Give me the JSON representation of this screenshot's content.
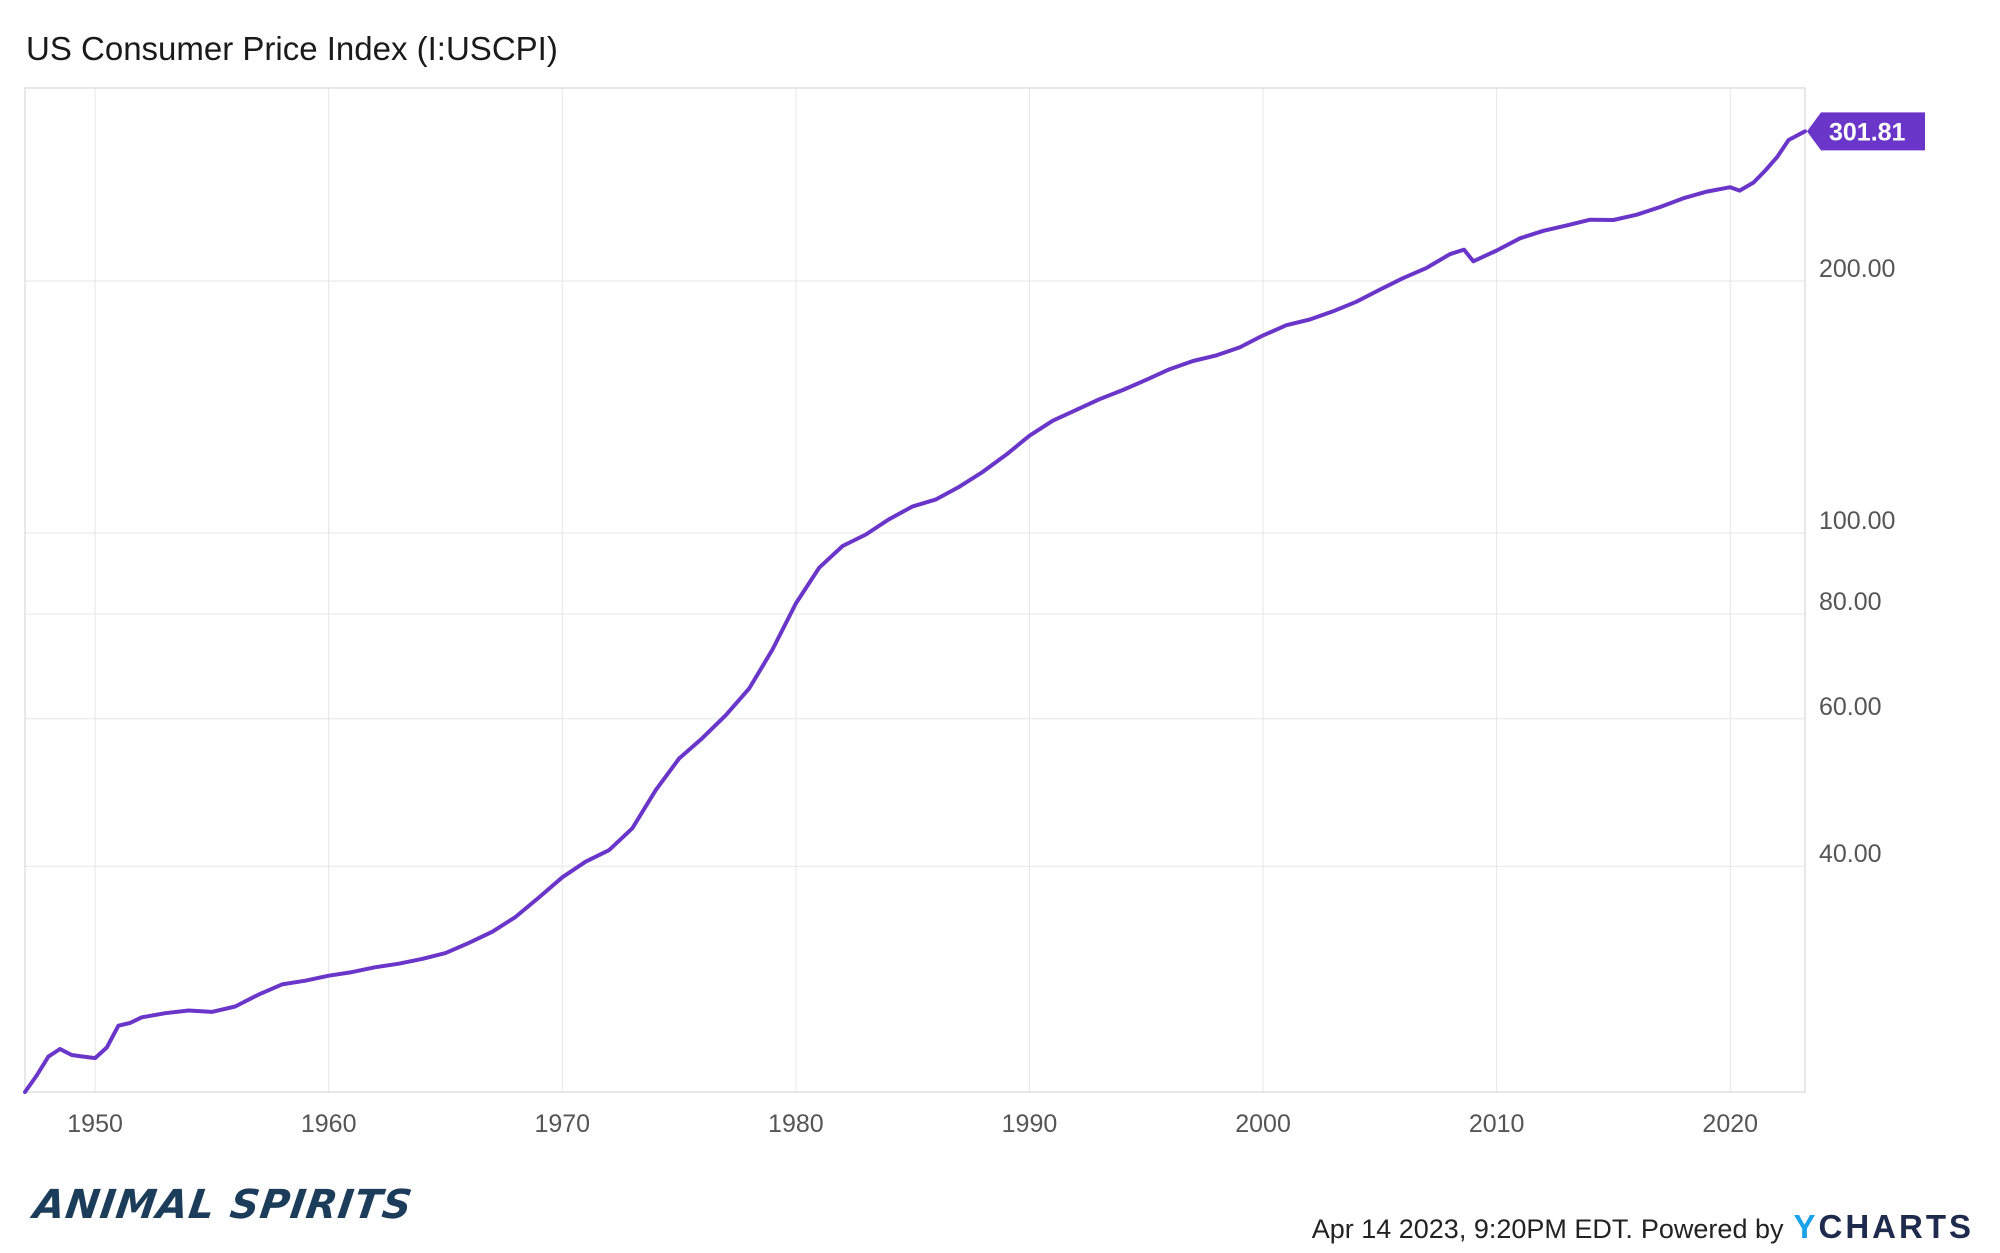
{
  "title": "US Consumer Price Index (I:USCPI)",
  "footer": {
    "timestamp": "Apr 14 2023, 9:20PM EDT.",
    "powered_by": "Powered by",
    "brand_y": "Y",
    "brand_rest": "CHARTS"
  },
  "watermark": "ANIMAL SPIRITS",
  "colors": {
    "line": "#6a35c9",
    "grid": "#e6e6e6",
    "label_bg": "#6a35c9",
    "axis_text": "#555555"
  },
  "chart_data": {
    "type": "line",
    "title": "US Consumer Price Index (I:USCPI)",
    "y_scale": "log",
    "ylim": [
      21.5,
      340
    ],
    "xlim": [
      1947.0,
      2023.2
    ],
    "y_ticks": [
      40,
      60,
      80,
      100,
      200
    ],
    "y_tick_labels": [
      "40.00",
      "60.00",
      "80.00",
      "100.00",
      "200.00"
    ],
    "x_ticks": [
      1950,
      1960,
      1970,
      1980,
      1990,
      2000,
      2010,
      2020
    ],
    "x_tick_labels": [
      "1950",
      "1960",
      "1970",
      "1980",
      "1990",
      "2000",
      "2010",
      "2020"
    ],
    "grid": true,
    "last_value_label": "301.81",
    "series": [
      {
        "x": [
          1947.0,
          1947.5,
          1948.0,
          1948.5,
          1949.0,
          1949.5,
          1950.0,
          1950.5,
          1951.0,
          1951.5,
          1952.0,
          1953.0,
          1954.0,
          1955.0,
          1956.0,
          1957.0,
          1958.0,
          1959.0,
          1960.0,
          1961.0,
          1962.0,
          1963.0,
          1964.0,
          1965.0,
          1966.0,
          1967.0,
          1968.0,
          1969.0,
          1970.0,
          1971.0,
          1972.0,
          1973.0,
          1974.0,
          1975.0,
          1976.0,
          1977.0,
          1978.0,
          1979.0,
          1980.0,
          1981.0,
          1982.0,
          1983.0,
          1984.0,
          1985.0,
          1986.0,
          1987.0,
          1988.0,
          1989.0,
          1990.0,
          1991.0,
          1992.0,
          1993.0,
          1994.0,
          1995.0,
          1996.0,
          1997.0,
          1998.0,
          1999.0,
          2000.0,
          2001.0,
          2002.0,
          2003.0,
          2004.0,
          2005.0,
          2006.0,
          2007.0,
          2008.0,
          2008.6,
          2009.0,
          2010.0,
          2011.0,
          2012.0,
          2013.0,
          2014.0,
          2015.0,
          2016.0,
          2017.0,
          2018.0,
          2019.0,
          2020.0,
          2020.4,
          2021.0,
          2021.5,
          2022.0,
          2022.5,
          2023.2
        ],
        "values": [
          21.5,
          22.5,
          23.7,
          24.2,
          23.8,
          23.7,
          23.6,
          24.3,
          25.8,
          26.0,
          26.4,
          26.7,
          26.9,
          26.8,
          27.2,
          28.1,
          28.9,
          29.2,
          29.6,
          29.9,
          30.3,
          30.6,
          31.0,
          31.5,
          32.4,
          33.4,
          34.8,
          36.7,
          38.8,
          40.5,
          41.8,
          44.4,
          49.3,
          53.8,
          56.9,
          60.6,
          65.2,
          72.6,
          82.4,
          90.9,
          96.5,
          99.6,
          103.9,
          107.6,
          109.7,
          113.6,
          118.3,
          124.0,
          130.7,
          136.2,
          140.3,
          144.5,
          148.2,
          152.4,
          156.9,
          160.5,
          163.0,
          166.6,
          172.2,
          177.1,
          179.9,
          184.0,
          188.9,
          195.3,
          201.6,
          207.3,
          215.3,
          218.0,
          211.1,
          217.5,
          224.9,
          229.6,
          233.0,
          236.7,
          236.5,
          240.0,
          245.1,
          251.1,
          255.7,
          258.8,
          256.4,
          262.2,
          271.0,
          281.1,
          294.7,
          301.81
        ]
      }
    ]
  }
}
